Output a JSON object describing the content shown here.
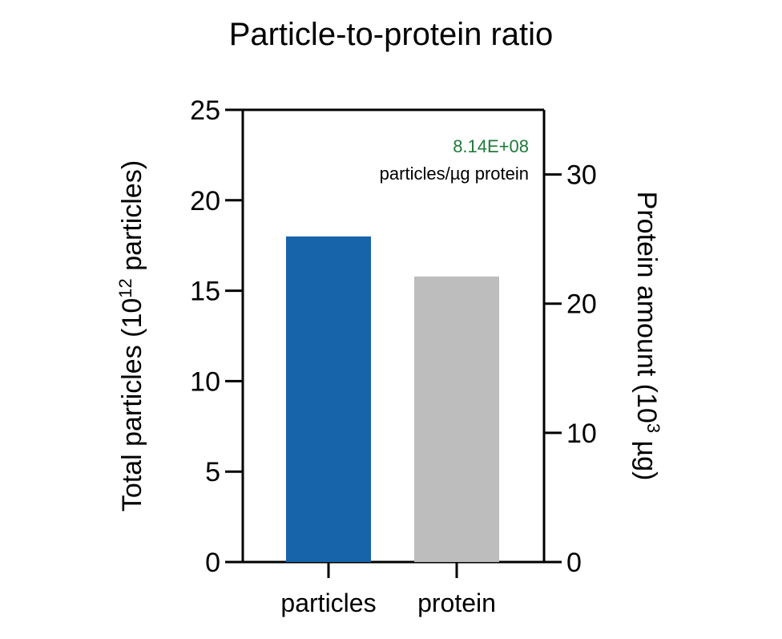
{
  "chart_data": {
    "type": "bar",
    "title": "Particle-to-protein ratio",
    "categories": [
      "particles",
      "protein"
    ],
    "series": [
      {
        "axis": "left",
        "unit": "10^12 particles",
        "values": [
          18.0,
          null
        ],
        "color": "#1764ab"
      },
      {
        "axis": "right",
        "unit": "10^3 µg",
        "values": [
          null,
          22.1
        ],
        "color": "#bdbdbd"
      }
    ],
    "y_left": {
      "label_prefix": "Total particles (10",
      "label_exp": "12",
      "label_suffix": " particles)",
      "ylim": [
        0,
        25
      ],
      "ticks": [
        "0",
        "5",
        "10",
        "15",
        "20",
        "25"
      ]
    },
    "y_right": {
      "label_prefix": "Protein amount (10",
      "label_exp": "3",
      "label_suffix": " µg)",
      "ylim": [
        0,
        35
      ],
      "ticks": [
        "0",
        "10",
        "20",
        "30"
      ]
    },
    "annotation": {
      "value": "8.14E+08",
      "unit": "particles/µg protein",
      "value_color": "#1e7a3c"
    },
    "grid": false,
    "legend": "none"
  }
}
